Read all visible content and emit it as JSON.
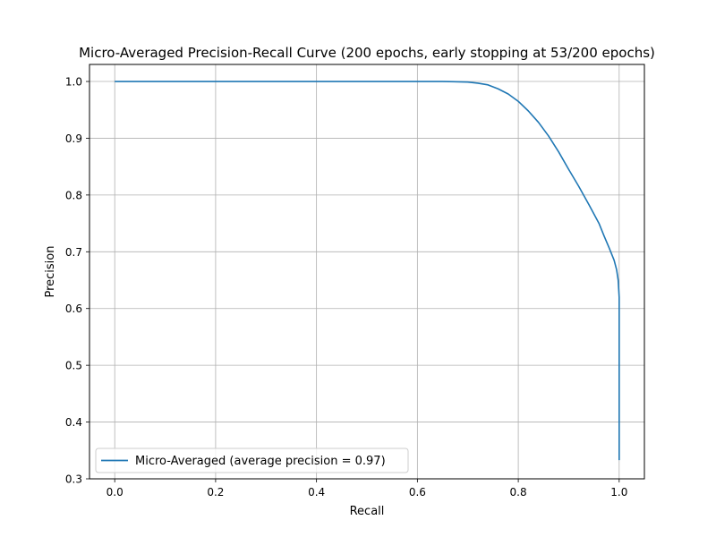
{
  "chart_data": {
    "type": "line",
    "title": "Micro-Averaged Precision-Recall Curve (200 epochs, early stopping at 53/200 epochs)",
    "xlabel": "Recall",
    "ylabel": "Precision",
    "xlim": [
      -0.05,
      1.05
    ],
    "ylim": [
      0.3,
      1.03
    ],
    "xticks": [
      0.0,
      0.2,
      0.4,
      0.6,
      0.8,
      1.0
    ],
    "xtick_labels": [
      "0.0",
      "0.2",
      "0.4",
      "0.6",
      "0.8",
      "1.0"
    ],
    "yticks": [
      0.3,
      0.4,
      0.5,
      0.6,
      0.7,
      0.8,
      0.9,
      1.0
    ],
    "ytick_labels": [
      "0.3",
      "0.4",
      "0.5",
      "0.6",
      "0.7",
      "0.8",
      "0.9",
      "1.0"
    ],
    "grid": true,
    "legend_position": "lower-left",
    "series": [
      {
        "name": "Micro-Averaged (average precision = 0.97)",
        "color": "#1f77b4",
        "x": [
          0.0,
          0.2,
          0.4,
          0.6,
          0.65,
          0.7,
          0.72,
          0.74,
          0.76,
          0.78,
          0.8,
          0.82,
          0.84,
          0.86,
          0.88,
          0.9,
          0.92,
          0.94,
          0.96,
          0.97,
          0.98,
          0.99,
          0.995,
          0.998,
          1.0,
          1.0,
          1.0
        ],
        "y": [
          1.0,
          1.0,
          1.0,
          1.0,
          1.0,
          0.999,
          0.997,
          0.994,
          0.987,
          0.978,
          0.965,
          0.948,
          0.928,
          0.904,
          0.876,
          0.845,
          0.815,
          0.783,
          0.75,
          0.728,
          0.707,
          0.685,
          0.668,
          0.65,
          0.62,
          0.45,
          0.333
        ]
      }
    ]
  }
}
